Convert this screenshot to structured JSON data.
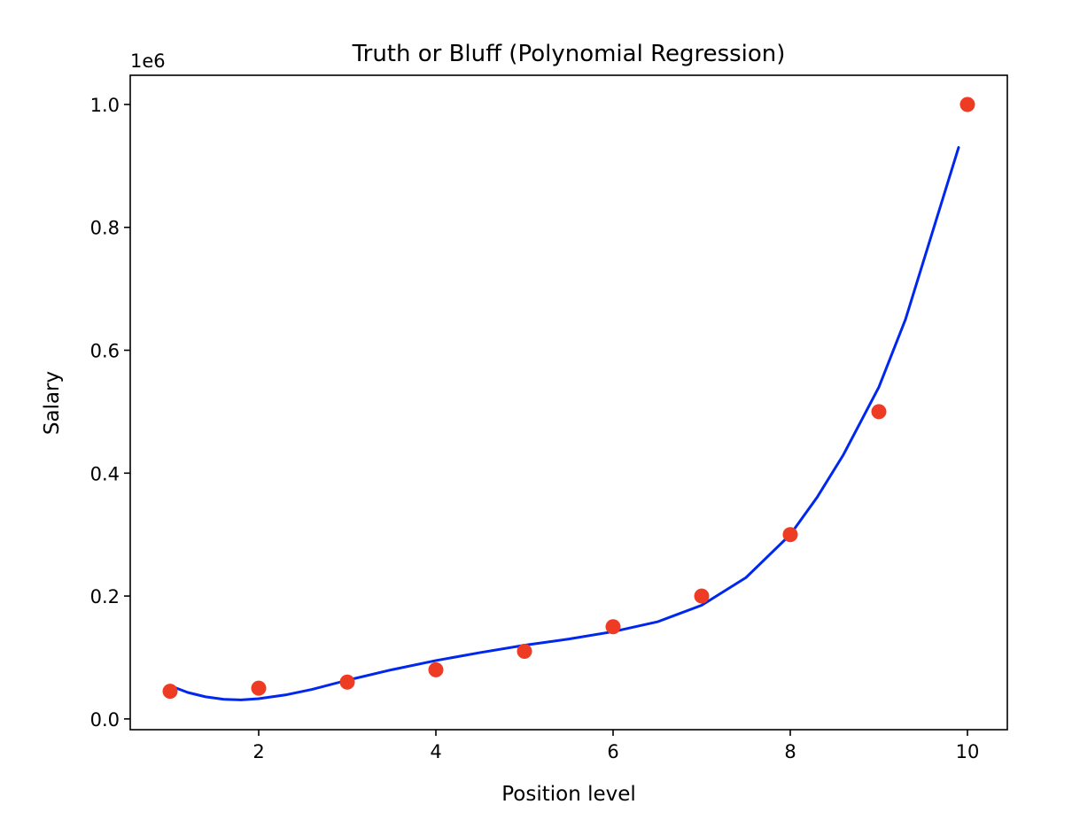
{
  "chart_data": {
    "type": "scatter",
    "title": "Truth or Bluff (Polynomial Regression)",
    "xlabel": "Position level",
    "ylabel": "Salary",
    "y_offset_text": "1e6",
    "xlim": [
      0.55,
      10.45
    ],
    "ylim": [
      -0.0175,
      1.0475
    ],
    "x_ticks": [
      2,
      4,
      6,
      8,
      10
    ],
    "x_tick_labels": [
      "2",
      "4",
      "6",
      "8",
      "10"
    ],
    "y_ticks": [
      0.0,
      0.2,
      0.4,
      0.6,
      0.8,
      1.0
    ],
    "y_tick_labels": [
      "0.0",
      "0.2",
      "0.4",
      "0.6",
      "0.8",
      "1.0"
    ],
    "grid": false,
    "legend": "none",
    "series": [
      {
        "kind": "scatter",
        "color": "#ee3b24",
        "x": [
          1,
          2,
          3,
          4,
          5,
          6,
          7,
          8,
          9,
          10
        ],
        "y": [
          0.045,
          0.05,
          0.06,
          0.08,
          0.11,
          0.15,
          0.2,
          0.3,
          0.5,
          1.0
        ]
      },
      {
        "kind": "line",
        "color": "#0027ee",
        "x": [
          1.0,
          1.2,
          1.4,
          1.6,
          1.8,
          2.0,
          2.3,
          2.6,
          3.0,
          3.5,
          4.0,
          4.5,
          5.0,
          5.5,
          6.0,
          6.5,
          7.0,
          7.5,
          8.0,
          8.3,
          8.6,
          9.0,
          9.3,
          9.6,
          9.9
        ],
        "y": [
          0.054,
          0.043,
          0.036,
          0.032,
          0.031,
          0.033,
          0.039,
          0.048,
          0.063,
          0.08,
          0.095,
          0.108,
          0.12,
          0.13,
          0.142,
          0.158,
          0.185,
          0.23,
          0.3,
          0.36,
          0.43,
          0.54,
          0.65,
          0.79,
          0.93
        ]
      }
    ]
  }
}
